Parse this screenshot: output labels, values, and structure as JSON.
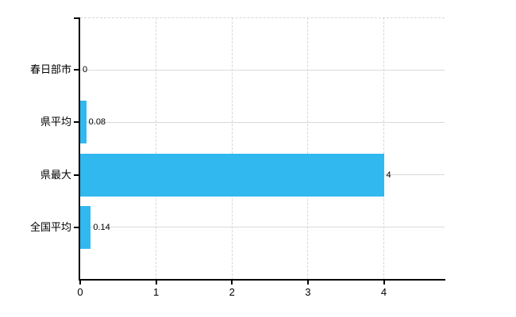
{
  "chart_data": {
    "type": "bar",
    "orientation": "horizontal",
    "title": "",
    "categories": [
      "春日部市",
      "県平均",
      "県最大",
      "全国平均"
    ],
    "values": [
      0,
      0.08,
      4,
      0.14
    ],
    "value_labels": [
      "0",
      "0.08",
      "4",
      "0.14"
    ],
    "x_tick_labels": [
      "0",
      "1",
      "2",
      "3",
      "4"
    ],
    "x_tick_values": [
      0,
      1,
      2,
      3,
      4
    ],
    "xlim": [
      0,
      4.8
    ],
    "bar_color": "#31b8ee",
    "grid": true,
    "legend": false,
    "background_color": "#ffffff",
    "gridline_color": "#d7dcd7",
    "axis_color": "#000000",
    "text_color": "#000000"
  }
}
